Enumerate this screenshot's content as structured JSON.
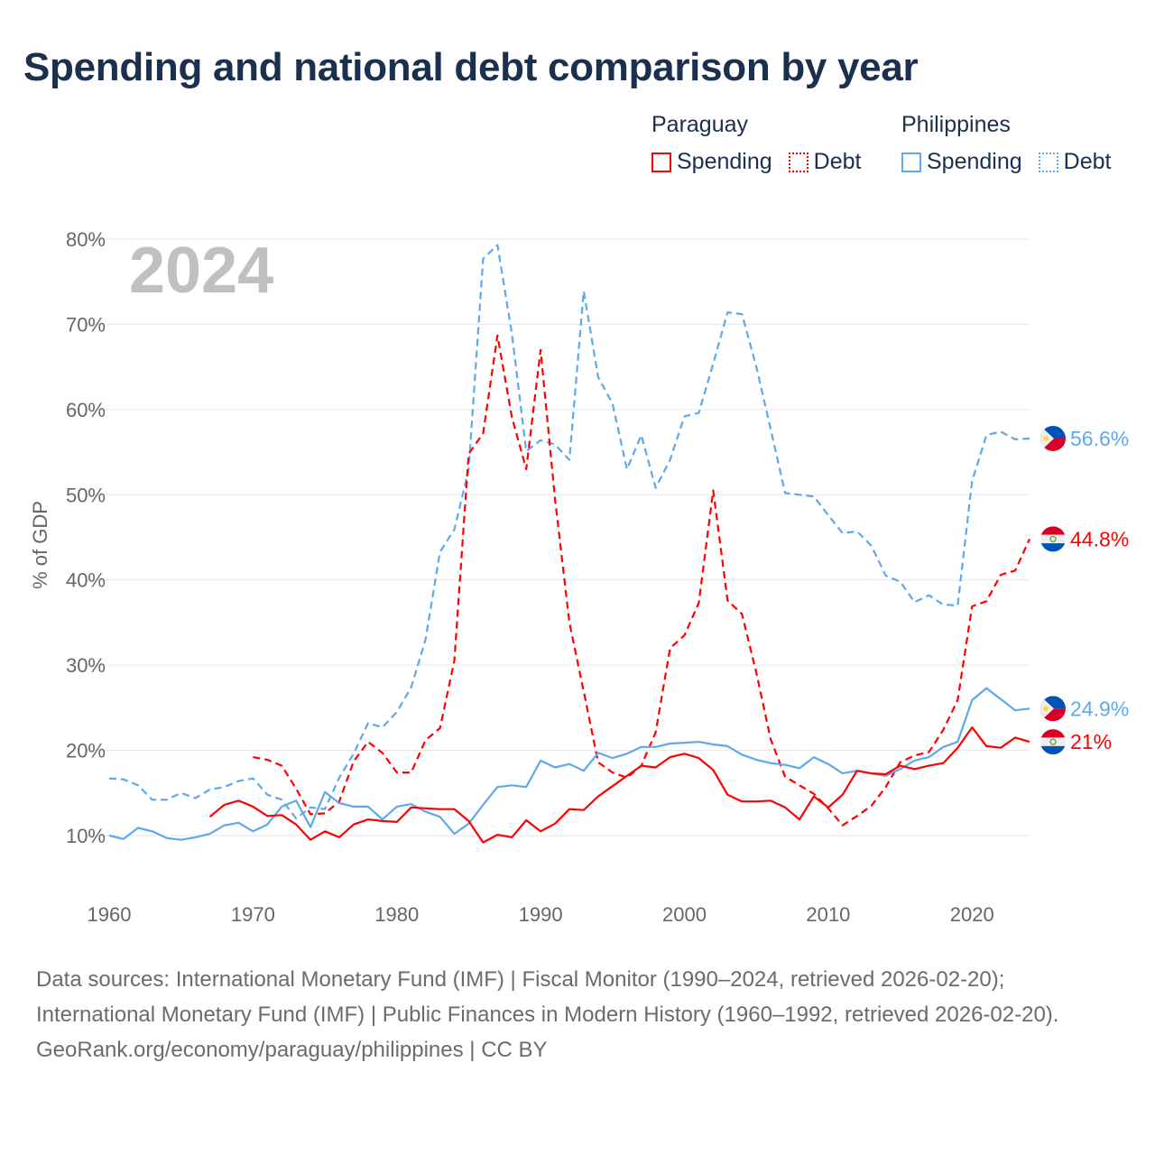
{
  "title": "Spending and national debt comparison by year",
  "legend": [
    {
      "group": "Paraguay",
      "color": "#ff0000",
      "items": [
        {
          "label": "Spending",
          "style": "solid"
        },
        {
          "label": "Debt",
          "style": "dotted"
        }
      ]
    },
    {
      "group": "Philippines",
      "color": "#5ea8ec",
      "items": [
        {
          "label": "Spending",
          "style": "solid"
        },
        {
          "label": "Debt",
          "style": "dotted"
        }
      ]
    }
  ],
  "footer": {
    "sources": "Data sources: International Monetary Fund (IMF) | Fiscal Monitor (1990–2024, retrieved 2026-02-20); International Monetary Fund (IMF) | Public Finances in Modern History (1960–1992, retrieved 2026-02-20).",
    "credit": "GeoRank.org/economy/paraguay/philippines | CC BY"
  },
  "chart_data": {
    "type": "line",
    "title": "Spending and national debt comparison by year",
    "year_watermark": "2024",
    "xlabel": "",
    "ylabel": "% of GDP",
    "xlim": [
      1960,
      2024
    ],
    "ylim": [
      10,
      80
    ],
    "x_ticks": [
      "1960",
      "1970",
      "1980",
      "1990",
      "2000",
      "2010",
      "2020"
    ],
    "y_ticks": [
      "10%",
      "20%",
      "30%",
      "40%",
      "50%",
      "60%",
      "70%",
      "80%"
    ],
    "grid": true,
    "legend_position": "top-right",
    "series": [
      {
        "name": "Philippines Debt",
        "country": "Philippines",
        "color": "#5ea8ec",
        "dashed": true,
        "start": 1960,
        "end_label": "56.6%",
        "values": [
          16.7,
          16.6,
          15.9,
          14.2,
          14.2,
          15.0,
          14.4,
          15.4,
          15.7,
          16.4,
          16.7,
          14.8,
          14.2,
          12.0,
          13.3,
          13.1,
          16.8,
          19.6,
          23.2,
          22.7,
          24.5,
          27.4,
          33.0,
          43.3,
          45.9,
          53.0,
          77.7,
          79.3,
          68.9,
          55.1,
          56.4,
          55.9,
          54.1,
          73.9,
          63.8,
          60.7,
          53.0,
          57.0,
          50.8,
          54.1,
          59.2,
          59.6,
          65.4,
          71.4,
          71.2,
          65.0,
          57.7,
          50.2,
          50.0,
          49.8,
          47.6,
          45.5,
          45.7,
          44.0,
          40.5,
          39.8,
          37.4,
          38.2,
          37.1,
          37.0,
          51.6,
          57.0,
          57.4,
          56.5,
          56.6
        ]
      },
      {
        "name": "Paraguay Debt",
        "country": "Paraguay",
        "color": "#ff0000",
        "dashed": true,
        "start": 1970,
        "end_label": "44.8%",
        "values": [
          19.2,
          18.9,
          18.2,
          15.5,
          12.5,
          12.6,
          14.0,
          18.7,
          21.0,
          19.7,
          17.4,
          17.4,
          21.2,
          22.6,
          30.5,
          54.8,
          57.2,
          68.7,
          59.1,
          53.0,
          67.0,
          49.5,
          35.0,
          26.9,
          18.6,
          17.4,
          16.8,
          18.2,
          22.1,
          32.0,
          33.5,
          37.3,
          50.5,
          37.6,
          36.0,
          29.1,
          21.3,
          16.9,
          15.9,
          14.9,
          13.2,
          11.2,
          12.3,
          13.5,
          15.7,
          18.6,
          19.4,
          19.8,
          22.4,
          25.9,
          36.9,
          37.5,
          40.6,
          41.1,
          44.8
        ]
      },
      {
        "name": "Philippines Spending",
        "country": "Philippines",
        "color": "#5ea8ec",
        "dashed": false,
        "start": 1960,
        "end_label": "24.9%",
        "values": [
          10.0,
          9.6,
          10.9,
          10.5,
          9.7,
          9.5,
          9.8,
          10.2,
          11.2,
          11.5,
          10.5,
          11.3,
          13.4,
          14.1,
          11.0,
          15.1,
          13.8,
          13.4,
          13.4,
          11.9,
          13.4,
          13.7,
          12.8,
          12.2,
          10.2,
          11.4,
          13.6,
          15.7,
          15.9,
          15.7,
          18.8,
          18.0,
          18.4,
          17.6,
          19.7,
          19.1,
          19.6,
          20.4,
          20.4,
          20.8,
          20.9,
          21.0,
          20.7,
          20.5,
          19.5,
          18.9,
          18.5,
          18.3,
          17.9,
          19.2,
          18.4,
          17.3,
          17.6,
          17.3,
          17.0,
          17.8,
          18.8,
          19.2,
          20.4,
          21.0,
          25.9,
          27.3,
          26.0,
          24.7,
          24.9
        ]
      },
      {
        "name": "Paraguay Spending",
        "country": "Paraguay",
        "color": "#ff0000",
        "dashed": false,
        "start": 1967,
        "end_label": "21%",
        "values": [
          12.2,
          13.6,
          14.1,
          13.4,
          12.3,
          12.4,
          11.3,
          9.5,
          10.5,
          9.8,
          11.3,
          11.9,
          11.7,
          11.6,
          13.3,
          13.2,
          13.1,
          13.1,
          11.7,
          9.2,
          10.1,
          9.8,
          11.8,
          10.5,
          11.4,
          13.1,
          13.0,
          14.6,
          15.8,
          17.0,
          18.2,
          18.0,
          19.2,
          19.6,
          19.1,
          17.7,
          14.8,
          14.0,
          14.0,
          14.1,
          13.3,
          11.9,
          14.6,
          13.3,
          14.8,
          17.6,
          17.3,
          17.2,
          18.2,
          17.8,
          18.2,
          18.5,
          20.3,
          22.7,
          20.5,
          20.3,
          21.5,
          21.0
        ]
      }
    ]
  }
}
